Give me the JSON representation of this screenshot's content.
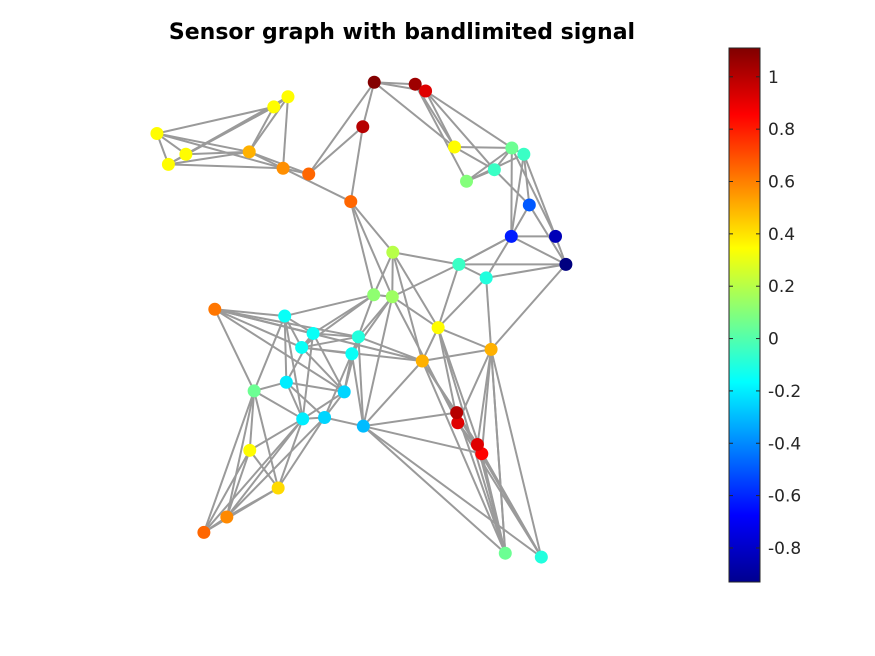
{
  "chart_data": {
    "type": "scatter",
    "subtype": "graph-signal",
    "title": "Sensor graph with bandlimited signal",
    "colormap": "jet",
    "colorbar": {
      "clim": [
        -0.93,
        1.11
      ],
      "ticks": [
        -0.8,
        -0.6,
        -0.4,
        -0.2,
        0,
        0.2,
        0.4,
        0.6,
        0.8,
        1
      ],
      "tick_labels": [
        "-0.8",
        "-0.6",
        "-0.4",
        "-0.2",
        "0",
        "0.2",
        "0.4",
        "0.6",
        "0.8",
        "1"
      ]
    },
    "axes_visible": false,
    "grid": false,
    "edge_color": "#9a9a9a",
    "nodes": [
      {
        "id": "n0",
        "x": 0.267,
        "y": 0.936,
        "value": 0.35
      },
      {
        "id": "n1",
        "x": 0.293,
        "y": 0.957,
        "value": 0.35
      },
      {
        "id": "n2",
        "x": 0.053,
        "y": 0.881,
        "value": 0.35
      },
      {
        "id": "n3",
        "x": 0.106,
        "y": 0.838,
        "value": 0.35
      },
      {
        "id": "n4",
        "x": 0.074,
        "y": 0.817,
        "value": 0.35
      },
      {
        "id": "n5",
        "x": 0.222,
        "y": 0.843,
        "value": 0.5
      },
      {
        "id": "n6",
        "x": 0.284,
        "y": 0.809,
        "value": 0.57
      },
      {
        "id": "n7",
        "x": 0.331,
        "y": 0.797,
        "value": 0.65
      },
      {
        "id": "n8",
        "x": 0.408,
        "y": 0.74,
        "value": 0.65
      },
      {
        "id": "n9",
        "x": 0.43,
        "y": 0.895,
        "value": 1.0
      },
      {
        "id": "n10",
        "x": 0.451,
        "y": 0.987,
        "value": 1.1
      },
      {
        "id": "n11",
        "x": 0.526,
        "y": 0.983,
        "value": 1.05
      },
      {
        "id": "n12",
        "x": 0.545,
        "y": 0.969,
        "value": 0.92
      },
      {
        "id": "n13",
        "x": 0.598,
        "y": 0.853,
        "value": 0.35
      },
      {
        "id": "n14",
        "x": 0.62,
        "y": 0.782,
        "value": 0.1
      },
      {
        "id": "n15",
        "x": 0.671,
        "y": 0.806,
        "value": -0.05
      },
      {
        "id": "n16",
        "x": 0.703,
        "y": 0.851,
        "value": 0.05
      },
      {
        "id": "n17",
        "x": 0.725,
        "y": 0.838,
        "value": -0.05
      },
      {
        "id": "n18",
        "x": 0.735,
        "y": 0.733,
        "value": -0.5
      },
      {
        "id": "n19",
        "x": 0.702,
        "y": 0.668,
        "value": -0.62
      },
      {
        "id": "n20",
        "x": 0.783,
        "y": 0.668,
        "value": -0.82
      },
      {
        "id": "n21",
        "x": 0.802,
        "y": 0.61,
        "value": -0.93
      },
      {
        "id": "n22",
        "x": 0.606,
        "y": 0.61,
        "value": -0.05
      },
      {
        "id": "n23",
        "x": 0.656,
        "y": 0.582,
        "value": -0.1
      },
      {
        "id": "n24",
        "x": 0.485,
        "y": 0.635,
        "value": 0.2
      },
      {
        "id": "n25",
        "x": 0.45,
        "y": 0.547,
        "value": 0.12
      },
      {
        "id": "n26",
        "x": 0.484,
        "y": 0.543,
        "value": 0.15
      },
      {
        "id": "n27",
        "x": 0.568,
        "y": 0.479,
        "value": 0.35
      },
      {
        "id": "n28",
        "x": 0.665,
        "y": 0.434,
        "value": 0.5
      },
      {
        "id": "n29",
        "x": 0.539,
        "y": 0.41,
        "value": 0.5
      },
      {
        "id": "n30",
        "x": 0.604,
        "y": 0.282,
        "value": 0.92
      },
      {
        "id": "n31",
        "x": 0.648,
        "y": 0.218,
        "value": 0.85
      },
      {
        "id": "n32",
        "x": 0.691,
        "y": 0.012,
        "value": 0.05
      },
      {
        "id": "n33",
        "x": 0.757,
        "y": 0.004,
        "value": -0.1
      },
      {
        "id": "n34",
        "x": 0.287,
        "y": 0.503,
        "value": -0.15
      },
      {
        "id": "n35",
        "x": 0.159,
        "y": 0.517,
        "value": 0.62
      },
      {
        "id": "n36",
        "x": 0.339,
        "y": 0.467,
        "value": -0.15
      },
      {
        "id": "n37",
        "x": 0.318,
        "y": 0.438,
        "value": -0.15
      },
      {
        "id": "n38",
        "x": 0.422,
        "y": 0.46,
        "value": -0.1
      },
      {
        "id": "n39",
        "x": 0.41,
        "y": 0.425,
        "value": -0.15
      },
      {
        "id": "n40",
        "x": 0.396,
        "y": 0.346,
        "value": -0.25
      },
      {
        "id": "n41",
        "x": 0.29,
        "y": 0.366,
        "value": -0.2
      },
      {
        "id": "n42",
        "x": 0.231,
        "y": 0.348,
        "value": 0.05
      },
      {
        "id": "n43",
        "x": 0.32,
        "y": 0.29,
        "value": -0.2
      },
      {
        "id": "n44",
        "x": 0.36,
        "y": 0.293,
        "value": -0.25
      },
      {
        "id": "n45",
        "x": 0.431,
        "y": 0.275,
        "value": -0.3
      },
      {
        "id": "n46",
        "x": 0.223,
        "y": 0.225,
        "value": 0.35
      },
      {
        "id": "n47",
        "x": 0.275,
        "y": 0.147,
        "value": 0.42
      },
      {
        "id": "n48",
        "x": 0.181,
        "y": 0.087,
        "value": 0.58
      },
      {
        "id": "n49",
        "x": 0.139,
        "y": 0.055,
        "value": 0.65
      },
      {
        "id": "n50",
        "x": 0.602,
        "y": 0.303,
        "value": 1.0
      },
      {
        "id": "n51",
        "x": 0.64,
        "y": 0.237,
        "value": 0.92
      }
    ],
    "edges": [
      [
        "n0",
        "n1"
      ],
      [
        "n0",
        "n2"
      ],
      [
        "n0",
        "n3"
      ],
      [
        "n0",
        "n4"
      ],
      [
        "n0",
        "n5"
      ],
      [
        "n1",
        "n5"
      ],
      [
        "n1",
        "n6"
      ],
      [
        "n1",
        "n3"
      ],
      [
        "n2",
        "n3"
      ],
      [
        "n2",
        "n4"
      ],
      [
        "n2",
        "n5"
      ],
      [
        "n2",
        "n6"
      ],
      [
        "n3",
        "n5"
      ],
      [
        "n3",
        "n4"
      ],
      [
        "n4",
        "n6"
      ],
      [
        "n4",
        "n5"
      ],
      [
        "n5",
        "n6"
      ],
      [
        "n5",
        "n7"
      ],
      [
        "n6",
        "n7"
      ],
      [
        "n6",
        "n8"
      ],
      [
        "n7",
        "n9"
      ],
      [
        "n7",
        "n10"
      ],
      [
        "n9",
        "n10"
      ],
      [
        "n9",
        "n8"
      ],
      [
        "n10",
        "n11"
      ],
      [
        "n10",
        "n12"
      ],
      [
        "n10",
        "n13"
      ],
      [
        "n11",
        "n12"
      ],
      [
        "n11",
        "n13"
      ],
      [
        "n11",
        "n14"
      ],
      [
        "n12",
        "n15"
      ],
      [
        "n12",
        "n16"
      ],
      [
        "n12",
        "n13"
      ],
      [
        "n13",
        "n16"
      ],
      [
        "n13",
        "n15"
      ],
      [
        "n14",
        "n15"
      ],
      [
        "n14",
        "n17"
      ],
      [
        "n14",
        "n16"
      ],
      [
        "n15",
        "n16"
      ],
      [
        "n15",
        "n18"
      ],
      [
        "n16",
        "n17"
      ],
      [
        "n16",
        "n19"
      ],
      [
        "n16",
        "n20"
      ],
      [
        "n17",
        "n18"
      ],
      [
        "n17",
        "n20"
      ],
      [
        "n17",
        "n19"
      ],
      [
        "n18",
        "n19"
      ],
      [
        "n19",
        "n20"
      ],
      [
        "n20",
        "n21"
      ],
      [
        "n18",
        "n21"
      ],
      [
        "n19",
        "n22"
      ],
      [
        "n19",
        "n23"
      ],
      [
        "n21",
        "n22"
      ],
      [
        "n21",
        "n23"
      ],
      [
        "n21",
        "n28"
      ],
      [
        "n19",
        "n21"
      ],
      [
        "n8",
        "n24"
      ],
      [
        "n8",
        "n25"
      ],
      [
        "n8",
        "n26"
      ],
      [
        "n24",
        "n26"
      ],
      [
        "n24",
        "n25"
      ],
      [
        "n24",
        "n22"
      ],
      [
        "n24",
        "n27"
      ],
      [
        "n24",
        "n29"
      ],
      [
        "n25",
        "n26"
      ],
      [
        "n25",
        "n34"
      ],
      [
        "n25",
        "n36"
      ],
      [
        "n25",
        "n39"
      ],
      [
        "n25",
        "n37"
      ],
      [
        "n26",
        "n38"
      ],
      [
        "n26",
        "n39"
      ],
      [
        "n26",
        "n45"
      ],
      [
        "n26",
        "n22"
      ],
      [
        "n26",
        "n27"
      ],
      [
        "n26",
        "n30"
      ],
      [
        "n22",
        "n23"
      ],
      [
        "n22",
        "n27"
      ],
      [
        "n22",
        "n19"
      ],
      [
        "n23",
        "n28"
      ],
      [
        "n23",
        "n27"
      ],
      [
        "n27",
        "n28"
      ],
      [
        "n27",
        "n29"
      ],
      [
        "n27",
        "n30"
      ],
      [
        "n27",
        "n31"
      ],
      [
        "n27",
        "n32"
      ],
      [
        "n28",
        "n29"
      ],
      [
        "n28",
        "n30"
      ],
      [
        "n28",
        "n32"
      ],
      [
        "n28",
        "n31"
      ],
      [
        "n29",
        "n31"
      ],
      [
        "n29",
        "n35"
      ],
      [
        "n29",
        "n37"
      ],
      [
        "n29",
        "n45"
      ],
      [
        "n29",
        "n32"
      ],
      [
        "n30",
        "n31"
      ],
      [
        "n30",
        "n33"
      ],
      [
        "n31",
        "n32"
      ],
      [
        "n31",
        "n33"
      ],
      [
        "n45",
        "n31"
      ],
      [
        "n45",
        "n32"
      ],
      [
        "n34",
        "n35"
      ],
      [
        "n34",
        "n42"
      ],
      [
        "n34",
        "n41"
      ],
      [
        "n34",
        "n36"
      ],
      [
        "n34",
        "n37"
      ],
      [
        "n34",
        "n43"
      ],
      [
        "n35",
        "n36"
      ],
      [
        "n35",
        "n37"
      ],
      [
        "n35",
        "n38"
      ],
      [
        "n35",
        "n42"
      ],
      [
        "n35",
        "n40"
      ],
      [
        "n36",
        "n37"
      ],
      [
        "n36",
        "n38"
      ],
      [
        "n36",
        "n40"
      ],
      [
        "n36",
        "n41"
      ],
      [
        "n36",
        "n43"
      ],
      [
        "n37",
        "n38"
      ],
      [
        "n37",
        "n39"
      ],
      [
        "n37",
        "n40"
      ],
      [
        "n38",
        "n39"
      ],
      [
        "n38",
        "n40"
      ],
      [
        "n38",
        "n45"
      ],
      [
        "n38",
        "n29"
      ],
      [
        "n39",
        "n40"
      ],
      [
        "n39",
        "n45"
      ],
      [
        "n39",
        "n44"
      ],
      [
        "n40",
        "n41"
      ],
      [
        "n40",
        "n43"
      ],
      [
        "n40",
        "n44"
      ],
      [
        "n41",
        "n42"
      ],
      [
        "n41",
        "n43"
      ],
      [
        "n42",
        "n43"
      ],
      [
        "n42",
        "n46"
      ],
      [
        "n42",
        "n47"
      ],
      [
        "n42",
        "n48"
      ],
      [
        "n42",
        "n49"
      ],
      [
        "n43",
        "n44"
      ],
      [
        "n43",
        "n46"
      ],
      [
        "n43",
        "n47"
      ],
      [
        "n43",
        "n48"
      ],
      [
        "n43",
        "n49"
      ],
      [
        "n44",
        "n45"
      ],
      [
        "n44",
        "n48"
      ],
      [
        "n44",
        "n47"
      ],
      [
        "n44",
        "n41"
      ],
      [
        "n46",
        "n47"
      ],
      [
        "n46",
        "n48"
      ],
      [
        "n46",
        "n49"
      ],
      [
        "n47",
        "n48"
      ],
      [
        "n47",
        "n49"
      ],
      [
        "n48",
        "n49"
      ],
      [
        "n45",
        "n33"
      ],
      [
        "n45",
        "n50"
      ],
      [
        "n28",
        "n51"
      ],
      [
        "n28",
        "n32"
      ],
      [
        "n28",
        "n33"
      ],
      [
        "n29",
        "n50"
      ],
      [
        "n29",
        "n51"
      ],
      [
        "n50",
        "n51"
      ],
      [
        "n50",
        "n32"
      ],
      [
        "n51",
        "n32"
      ],
      [
        "n51",
        "n33"
      ],
      [
        "n50",
        "n33"
      ]
    ]
  }
}
